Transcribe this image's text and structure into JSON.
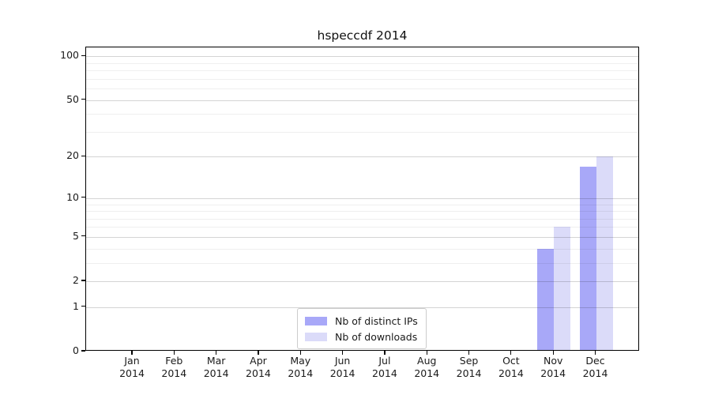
{
  "chart_data": {
    "type": "bar",
    "title": "hspeccdf 2014",
    "x_year": "2014",
    "categories": [
      "Jan",
      "Feb",
      "Mar",
      "Apr",
      "May",
      "Jun",
      "Jul",
      "Aug",
      "Sep",
      "Oct",
      "Nov",
      "Dec"
    ],
    "series": [
      {
        "name": "Nb of distinct IPs",
        "color": "#a8a8f8",
        "values": [
          0,
          0,
          0,
          0,
          0,
          0,
          0,
          0,
          0,
          0,
          4,
          17
        ]
      },
      {
        "name": "Nb of downloads",
        "color": "#dbdbf9",
        "values": [
          0,
          0,
          0,
          0,
          0,
          0,
          0,
          0,
          0,
          0,
          6,
          20
        ]
      }
    ],
    "y_axis": {
      "scale": "log10(value+1)",
      "major_ticks": [
        0,
        1,
        2,
        5,
        10,
        20,
        50,
        100
      ],
      "minor_ticks": [
        3,
        4,
        6,
        7,
        8,
        9,
        30,
        40,
        60,
        70,
        80,
        90
      ],
      "max": 115
    },
    "grid": {
      "major_color": "#d4d4d4",
      "minor_color": "#efefef"
    },
    "legend": {
      "position": "lower center"
    }
  }
}
